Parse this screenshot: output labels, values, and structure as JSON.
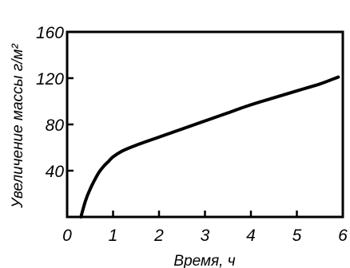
{
  "chart_data": {
    "type": "line",
    "title": "",
    "xlabel": "Время, ч",
    "ylabel": "Увеличение массы г/м²",
    "xlim": [
      0,
      6
    ],
    "ylim": [
      0,
      160
    ],
    "x_ticks": [
      "0",
      "1",
      "2",
      "3",
      "4",
      "5",
      "6"
    ],
    "y_ticks": [
      "40",
      "80",
      "120",
      "160"
    ],
    "grid": false,
    "legend": "none",
    "line_color": "#000000",
    "series": [
      {
        "x": [
          0.3,
          0.4,
          0.5,
          0.6,
          0.7,
          0.8,
          0.9,
          1.0,
          1.2,
          1.5,
          2.0,
          2.5,
          3.0,
          3.5,
          4.0,
          4.5,
          5.0,
          5.5,
          5.9
        ],
        "values": [
          0,
          14,
          24,
          32,
          39,
          44,
          48,
          52,
          57,
          62,
          69,
          76,
          83,
          90,
          97,
          103,
          109,
          115,
          121
        ]
      }
    ]
  }
}
